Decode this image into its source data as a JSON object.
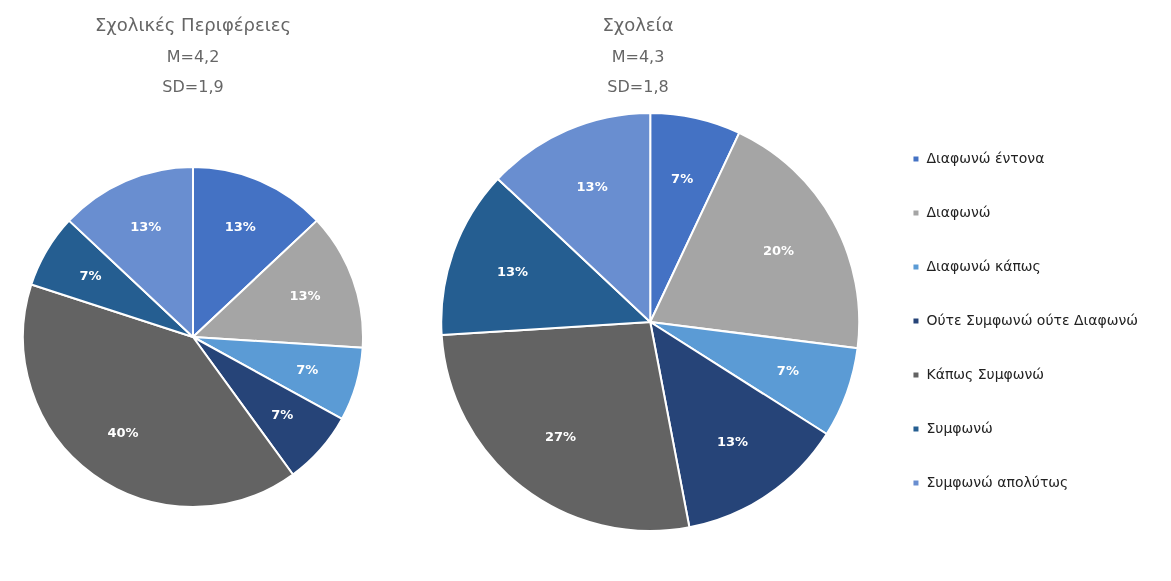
{
  "chart_data": [
    {
      "type": "pie",
      "title": "Σχολικές Περιφέρειες",
      "subtitle": "M=4,2",
      "annotations": [
        "SD=1,9"
      ],
      "categories": [
        null,
        null,
        null,
        null,
        null,
        null,
        null
      ],
      "values": [
        13,
        13,
        7,
        7,
        40,
        7,
        13
      ],
      "value_labels": [
        "13%",
        "13%",
        "7%",
        "7%",
        "40%",
        "7%",
        "13%"
      ],
      "colors": [
        "#4472c4",
        "#a5a5a5",
        "#5b9bd5",
        "#264478",
        "#636363",
        "#255e91",
        "#698ed0"
      ]
    },
    {
      "type": "pie",
      "title": "Σχολεία",
      "subtitle": "M=4,3",
      "annotations": [
        "SD=1,8"
      ],
      "categories": [
        "Διαφωνώ έντονα",
        "Διαφωνώ",
        "Διαφωνώ κάπως",
        "Ούτε Συμφωνώ ούτε Διαφωνώ",
        "Κάπως Συμφωνώ",
        "Συμφωνώ",
        "Συμφωνώ απολύτως"
      ],
      "values": [
        7,
        20,
        7,
        13,
        27,
        13,
        13
      ],
      "value_labels": [
        "7%",
        "20%",
        "7%",
        "13%",
        "27%",
        "13%",
        "13%"
      ],
      "colors": [
        "#4472c4",
        "#a5a5a5",
        "#5b9bd5",
        "#264478",
        "#636363",
        "#255e91",
        "#698ed0"
      ],
      "legend": "right"
    }
  ]
}
